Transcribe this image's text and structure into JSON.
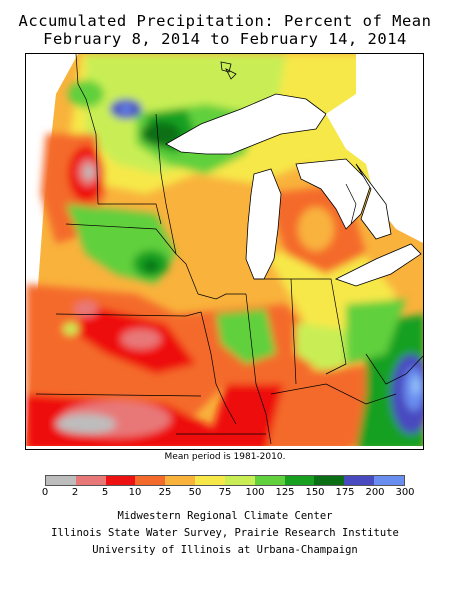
{
  "title": "Accumulated Precipitation: Percent of Mean",
  "subtitle": "February 8, 2014 to February 14, 2014",
  "mean_note": "Mean period is 1981-2010.",
  "legend": {
    "colors": [
      "#bdbdbd",
      "#e87878",
      "#ee1111",
      "#f46a2a",
      "#f9b23c",
      "#f7e84a",
      "#c9ee55",
      "#60d03c",
      "#17a020",
      "#0a6f14",
      "#4a4ac0",
      "#6a8ef0",
      "#96c6f8"
    ],
    "ticks": [
      "0",
      "2",
      "5",
      "10",
      "25",
      "50",
      "75",
      "100",
      "125",
      "150",
      "175",
      "200",
      "300"
    ]
  },
  "credits": [
    "Midwestern Regional Climate Center",
    "Illinois State Water Survey, Prairie Research Institute",
    "University of Illinois at Urbana-Champaign"
  ],
  "map_colors": {
    "below": "#ee1111",
    "low": "#f46a2a",
    "mid": "#f9b23c",
    "near": "#f7e84a",
    "normal": "#c9ee55",
    "above": "#60d03c",
    "wet": "#17a020",
    "verywet": "#0a6f14",
    "blue": "#4a4ac0",
    "lightblue": "#6a8ef0",
    "dry": "#bdbdbd",
    "pink": "#e87878"
  }
}
